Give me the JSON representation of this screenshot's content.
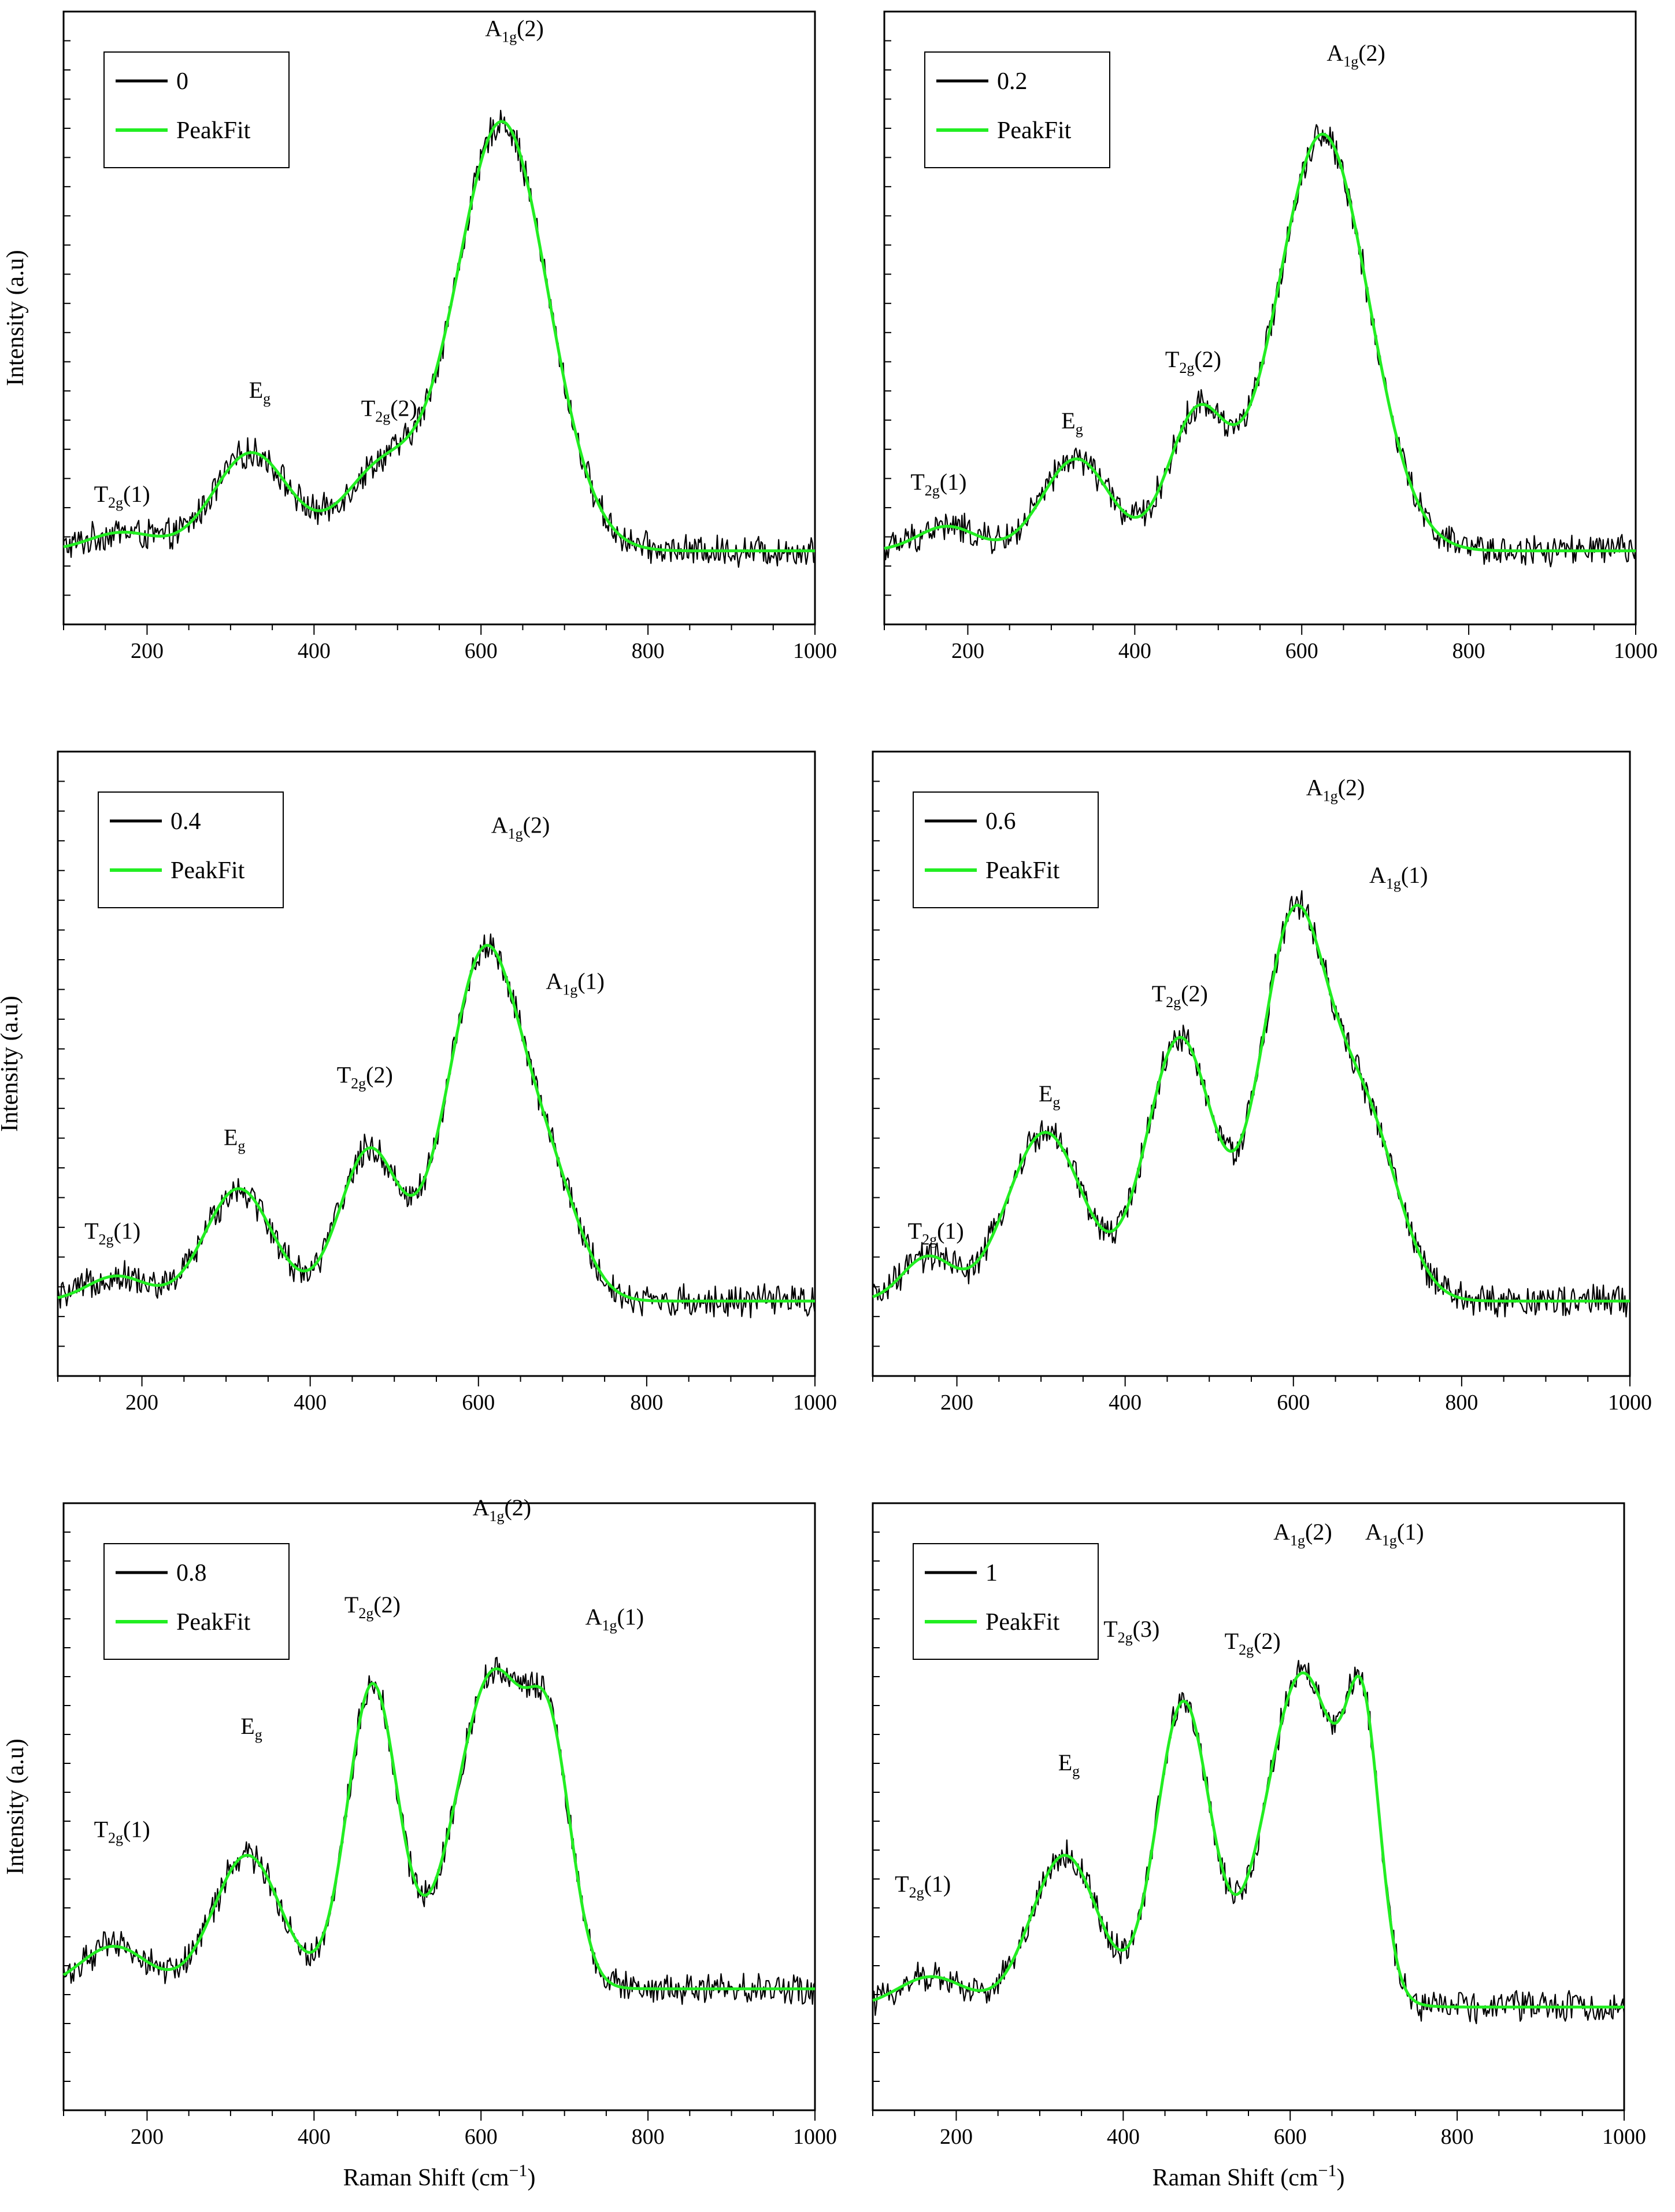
{
  "figure": {
    "common_ylabel": "Intensity (a.u)",
    "common_xlabel": "Raman Shift (cm",
    "common_xlabel_sup": "−1",
    "common_xlabel_end": ")",
    "legend_fit_label": "PeakFit",
    "colors": {
      "measured": "#000000",
      "fit": "#22ee22"
    }
  },
  "chart_data": [
    {
      "type": "line",
      "panel": "top-left",
      "legend": [
        "0",
        "PeakFit"
      ],
      "xlabel": "",
      "ylabel": "Intensity (a.u)",
      "xlim": [
        100,
        1000
      ],
      "ylim": [
        0,
        1
      ],
      "xticks": [
        200,
        400,
        600,
        800,
        1000
      ],
      "baseline": 0.12,
      "noise": 0.018,
      "fit_peaks": [
        {
          "center": 170,
          "amp": 0.03,
          "width": 40
        },
        {
          "center": 325,
          "amp": 0.16,
          "width": 45
        },
        {
          "center": 480,
          "amp": 0.13,
          "width": 45
        },
        {
          "center": 625,
          "amp": 0.7,
          "width": 55
        }
      ],
      "annotations": [
        {
          "label": "T",
          "sub": "2g",
          "suffix": "(1)",
          "x": 170,
          "y": 0.2
        },
        {
          "label": "E",
          "sub": "g",
          "suffix": "",
          "x": 335,
          "y": 0.37
        },
        {
          "label": "T",
          "sub": "2g",
          "suffix": "(2)",
          "x": 490,
          "y": 0.34
        },
        {
          "label": "A",
          "sub": "1g",
          "suffix": "(2)",
          "x": 640,
          "y": 0.96
        }
      ]
    },
    {
      "type": "line",
      "panel": "top-right",
      "legend": [
        "0.2",
        "PeakFit"
      ],
      "xlabel": "",
      "ylabel": "",
      "xlim": [
        100,
        1000
      ],
      "ylim": [
        0,
        1
      ],
      "xticks": [
        200,
        400,
        600,
        800,
        1000
      ],
      "baseline": 0.12,
      "noise": 0.018,
      "fit_peaks": [
        {
          "center": 175,
          "amp": 0.04,
          "width": 35
        },
        {
          "center": 330,
          "amp": 0.15,
          "width": 40
        },
        {
          "center": 475,
          "amp": 0.22,
          "width": 35
        },
        {
          "center": 625,
          "amp": 0.68,
          "width": 55
        }
      ],
      "annotations": [
        {
          "label": "T",
          "sub": "2g",
          "suffix": "(1)",
          "x": 165,
          "y": 0.22
        },
        {
          "label": "E",
          "sub": "g",
          "suffix": "",
          "x": 325,
          "y": 0.32
        },
        {
          "label": "T",
          "sub": "2g",
          "suffix": "(2)",
          "x": 470,
          "y": 0.42
        },
        {
          "label": "A",
          "sub": "1g",
          "suffix": "(2)",
          "x": 665,
          "y": 0.92
        }
      ]
    },
    {
      "type": "line",
      "panel": "middle-left",
      "legend": [
        "0.4",
        "PeakFit"
      ],
      "xlabel": "",
      "ylabel": "Intensity (a.u)",
      "xlim": [
        100,
        1000
      ],
      "ylim": [
        0,
        1
      ],
      "xticks": [
        200,
        400,
        600,
        800,
        1000
      ],
      "baseline": 0.12,
      "noise": 0.018,
      "fit_peaks": [
        {
          "center": 170,
          "amp": 0.04,
          "width": 35
        },
        {
          "center": 315,
          "amp": 0.18,
          "width": 40
        },
        {
          "center": 470,
          "amp": 0.24,
          "width": 35
        },
        {
          "center": 608,
          "amp": 0.56,
          "width": 45
        },
        {
          "center": 690,
          "amp": 0.14,
          "width": 35
        }
      ],
      "annotations": [
        {
          "label": "T",
          "sub": "2g",
          "suffix": "(1)",
          "x": 165,
          "y": 0.22
        },
        {
          "label": "E",
          "sub": "g",
          "suffix": "",
          "x": 310,
          "y": 0.37
        },
        {
          "label": "T",
          "sub": "2g",
          "suffix": "(2)",
          "x": 465,
          "y": 0.47
        },
        {
          "label": "A",
          "sub": "1g",
          "suffix": "(2)",
          "x": 650,
          "y": 0.87
        },
        {
          "label": "A",
          "sub": "1g",
          "suffix": "(1)",
          "x": 715,
          "y": 0.62
        }
      ]
    },
    {
      "type": "line",
      "panel": "middle-right",
      "legend": [
        "0.6",
        "PeakFit"
      ],
      "xlabel": "",
      "ylabel": "",
      "xlim": [
        100,
        1000
      ],
      "ylim": [
        0,
        1
      ],
      "xticks": [
        200,
        400,
        600,
        800,
        1000
      ],
      "baseline": 0.12,
      "noise": 0.018,
      "fit_peaks": [
        {
          "center": 165,
          "amp": 0.07,
          "width": 30
        },
        {
          "center": 305,
          "amp": 0.27,
          "width": 45
        },
        {
          "center": 465,
          "amp": 0.42,
          "width": 40
        },
        {
          "center": 600,
          "amp": 0.6,
          "width": 40
        },
        {
          "center": 685,
          "amp": 0.28,
          "width": 40
        }
      ],
      "annotations": [
        {
          "label": "T",
          "sub": "2g",
          "suffix": "(1)",
          "x": 175,
          "y": 0.22
        },
        {
          "label": "E",
          "sub": "g",
          "suffix": "",
          "x": 310,
          "y": 0.44
        },
        {
          "label": "T",
          "sub": "2g",
          "suffix": "(2)",
          "x": 465,
          "y": 0.6
        },
        {
          "label": "A",
          "sub": "1g",
          "suffix": "(2)",
          "x": 650,
          "y": 0.93
        },
        {
          "label": "A",
          "sub": "1g",
          "suffix": "(1)",
          "x": 725,
          "y": 0.79
        }
      ]
    },
    {
      "type": "line",
      "panel": "bottom-left",
      "legend": [
        "0.8",
        "PeakFit"
      ],
      "xlabel": "Raman Shift (cm−1)",
      "ylabel": "Intensity (a.u)",
      "xlim": [
        100,
        1000
      ],
      "ylim": [
        0,
        1
      ],
      "xticks": [
        200,
        400,
        600,
        800,
        1000
      ],
      "baseline": 0.2,
      "noise": 0.018,
      "fit_peaks": [
        {
          "center": 160,
          "amp": 0.07,
          "width": 40
        },
        {
          "center": 320,
          "amp": 0.22,
          "width": 40
        },
        {
          "center": 470,
          "amp": 0.5,
          "width": 30
        },
        {
          "center": 615,
          "amp": 0.52,
          "width": 45
        },
        {
          "center": 685,
          "amp": 0.3,
          "width": 25
        }
      ],
      "annotations": [
        {
          "label": "T",
          "sub": "2g",
          "suffix": "(1)",
          "x": 170,
          "y": 0.45
        },
        {
          "label": "E",
          "sub": "g",
          "suffix": "",
          "x": 325,
          "y": 0.62
        },
        {
          "label": "T",
          "sub": "2g",
          "suffix": "(2)",
          "x": 470,
          "y": 0.82
        },
        {
          "label": "A",
          "sub": "1g",
          "suffix": "(2)",
          "x": 625,
          "y": 0.98
        },
        {
          "label": "A",
          "sub": "1g",
          "suffix": "(1)",
          "x": 760,
          "y": 0.8
        }
      ]
    },
    {
      "type": "line",
      "panel": "bottom-right",
      "legend": [
        "1",
        "PeakFit"
      ],
      "xlabel": "Raman Shift (cm−1)",
      "ylabel": "",
      "xlim": [
        100,
        1000
      ],
      "ylim": [
        0,
        1
      ],
      "xticks": [
        200,
        400,
        600,
        800,
        1000
      ],
      "baseline": 0.17,
      "noise": 0.018,
      "fit_peaks": [
        {
          "center": 170,
          "amp": 0.05,
          "width": 40
        },
        {
          "center": 330,
          "amp": 0.25,
          "width": 40
        },
        {
          "center": 472,
          "amp": 0.5,
          "width": 32
        },
        {
          "center": 615,
          "amp": 0.55,
          "width": 45
        },
        {
          "center": 688,
          "amp": 0.38,
          "width": 20
        }
      ],
      "annotations": [
        {
          "label": "T",
          "sub": "2g",
          "suffix": "(1)",
          "x": 160,
          "y": 0.36
        },
        {
          "label": "E",
          "sub": "g",
          "suffix": "",
          "x": 335,
          "y": 0.56
        },
        {
          "label": "T",
          "sub": "2g",
          "suffix": "(3)",
          "x": 410,
          "y": 0.78
        },
        {
          "label": "T",
          "sub": "2g",
          "suffix": "(2)",
          "x": 555,
          "y": 0.76
        },
        {
          "label": "A",
          "sub": "1g",
          "suffix": "(2)",
          "x": 615,
          "y": 0.94
        },
        {
          "label": "A",
          "sub": "1g",
          "suffix": "(1)",
          "x": 725,
          "y": 0.94
        }
      ]
    }
  ]
}
